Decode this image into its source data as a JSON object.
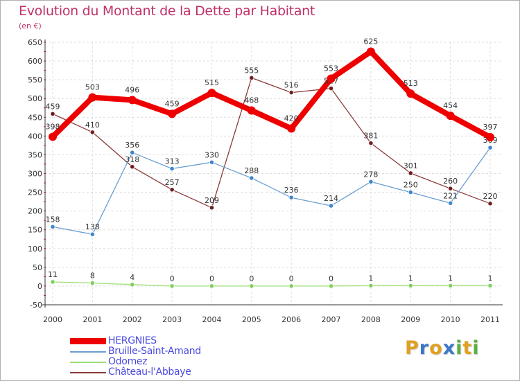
{
  "chart_data": {
    "type": "line",
    "title": "Evolution du Montant de la Dette par Habitant",
    "subtitle": "(en €)",
    "xlabel": "",
    "ylabel": "",
    "categories": [
      "2000",
      "2001",
      "2002",
      "2003",
      "2004",
      "2005",
      "2006",
      "2007",
      "2008",
      "2009",
      "2010",
      "2011"
    ],
    "ylim": [
      -50,
      650
    ],
    "yticks": [
      -50,
      0,
      50,
      100,
      150,
      200,
      250,
      300,
      350,
      400,
      450,
      500,
      550,
      600,
      650
    ],
    "grid": true,
    "legend_position": "bottom-left",
    "series": [
      {
        "name": "HERGNIES",
        "color": "#ee0000",
        "values": [
          398,
          503,
          496,
          459,
          515,
          468,
          420,
          553,
          625,
          513,
          454,
          397
        ],
        "emphasis": true
      },
      {
        "name": "Bruille-Saint-Amand",
        "color": "#6a9ed0",
        "point_color": "#3f86cc",
        "values": [
          158,
          138,
          356,
          313,
          330,
          288,
          236,
          214,
          278,
          250,
          221,
          369
        ]
      },
      {
        "name": "Odomez",
        "color": "#9ee07a",
        "point_color": "#7fd05a",
        "values": [
          11,
          8,
          4,
          0,
          0,
          0,
          0,
          0,
          1,
          1,
          1,
          1
        ]
      },
      {
        "name": "Château-l'Abbaye",
        "color": "#8a3a3a",
        "point_color": "#6e1e1e",
        "values": [
          459,
          410,
          318,
          257,
          209,
          555,
          516,
          527,
          381,
          301,
          260,
          220
        ]
      }
    ]
  },
  "logo": {
    "letters": [
      "P",
      "r",
      "o",
      "x",
      "i",
      "t",
      "i"
    ],
    "colors": [
      "#e0a020",
      "#3a78c8",
      "#e0a020",
      "#3a78c8",
      "#58b040",
      "#e0a020",
      "#58b040"
    ]
  }
}
